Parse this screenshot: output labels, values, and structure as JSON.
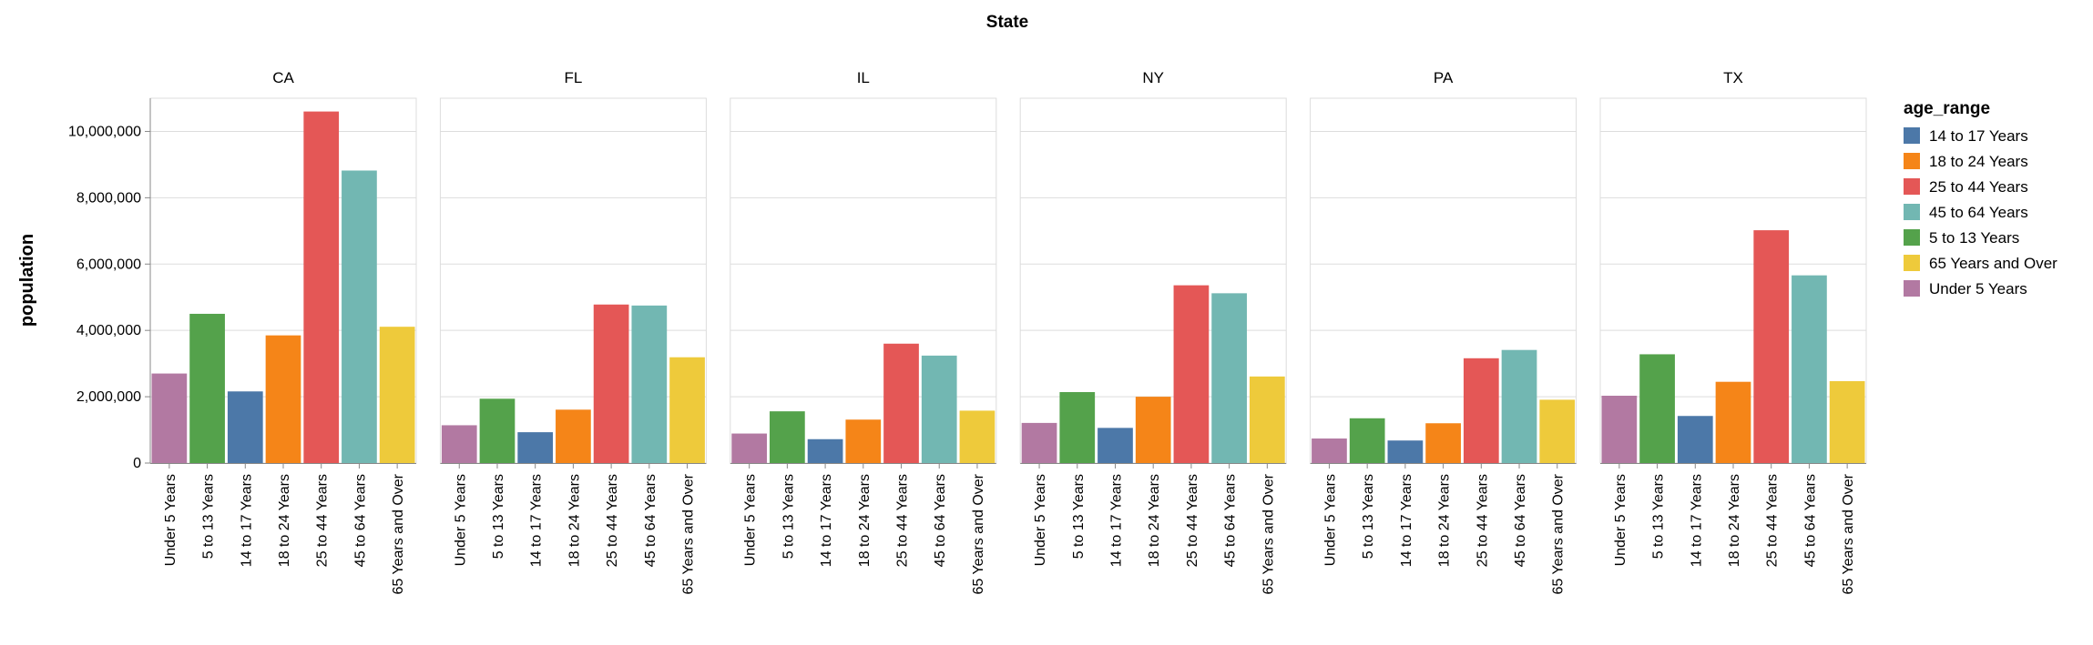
{
  "chart_data": {
    "type": "bar",
    "header_title": "State",
    "ylabel": "population",
    "ylim": [
      0,
      11000000
    ],
    "yticks": [
      0,
      2000000,
      4000000,
      6000000,
      8000000,
      10000000
    ],
    "ytick_labels": [
      "0",
      "2,000,000",
      "4,000,000",
      "6,000,000",
      "8,000,000",
      "10,000,000"
    ],
    "grid": true,
    "legend_position": "right",
    "legend_title": "age_range",
    "legend": [
      {
        "label": "14 to 17 Years",
        "color": "#4c78a8"
      },
      {
        "label": "18 to 24 Years",
        "color": "#f58518"
      },
      {
        "label": "25 to 44 Years",
        "color": "#e45756"
      },
      {
        "label": "45 to 64 Years",
        "color": "#72b7b2"
      },
      {
        "label": "5 to 13 Years",
        "color": "#54a24b"
      },
      {
        "label": "65 Years and Over",
        "color": "#eeca3b"
      },
      {
        "label": "Under 5 Years",
        "color": "#b279a2"
      }
    ],
    "categories": [
      "Under 5 Years",
      "5 to 13 Years",
      "14 to 17 Years",
      "18 to 24 Years",
      "25 to 44 Years",
      "45 to 64 Years",
      "65 Years and Over"
    ],
    "category_colors": [
      "#b279a2",
      "#54a24b",
      "#4c78a8",
      "#f58518",
      "#e45756",
      "#72b7b2",
      "#eeca3b"
    ],
    "facets": [
      {
        "name": "CA",
        "values": [
          2700000,
          4500000,
          2160000,
          3850000,
          10600000,
          8820000,
          4110000
        ]
      },
      {
        "name": "FL",
        "values": [
          1140000,
          1940000,
          930000,
          1610000,
          4780000,
          4750000,
          3190000
        ]
      },
      {
        "name": "IL",
        "values": [
          890000,
          1560000,
          720000,
          1310000,
          3600000,
          3240000,
          1580000
        ]
      },
      {
        "name": "NY",
        "values": [
          1210000,
          2140000,
          1060000,
          2000000,
          5360000,
          5120000,
          2610000
        ]
      },
      {
        "name": "PA",
        "values": [
          740000,
          1350000,
          680000,
          1200000,
          3160000,
          3410000,
          1910000
        ]
      },
      {
        "name": "TX",
        "values": [
          2030000,
          3280000,
          1420000,
          2450000,
          7020000,
          5660000,
          2470000
        ]
      }
    ]
  }
}
